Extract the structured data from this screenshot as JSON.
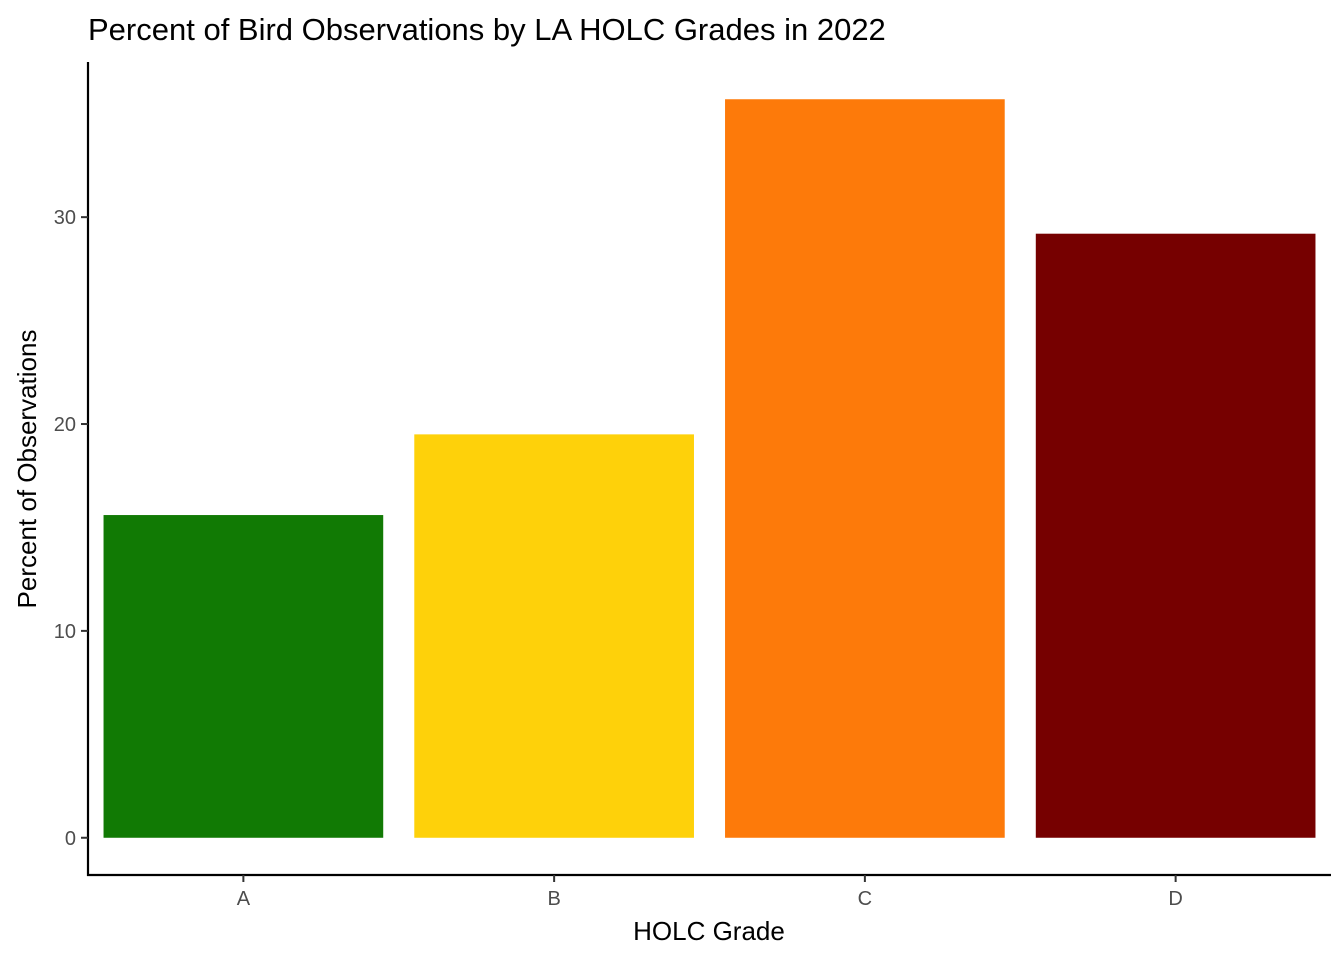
{
  "chart_data": {
    "type": "bar",
    "title": "Percent of Bird Observations by LA HOLC Grades in 2022",
    "xlabel": "HOLC Grade",
    "ylabel": "Percent of Observations",
    "categories": [
      "A",
      "B",
      "C",
      "D"
    ],
    "values": [
      15.6,
      19.5,
      35.7,
      29.2
    ],
    "colors": [
      "#117a04",
      "#fed10a",
      "#fd7a0a",
      "#760000"
    ],
    "yticks": [
      0,
      10,
      20,
      30
    ],
    "ylim": [
      -1.8,
      37.5
    ],
    "grid": false,
    "legend": "none"
  }
}
